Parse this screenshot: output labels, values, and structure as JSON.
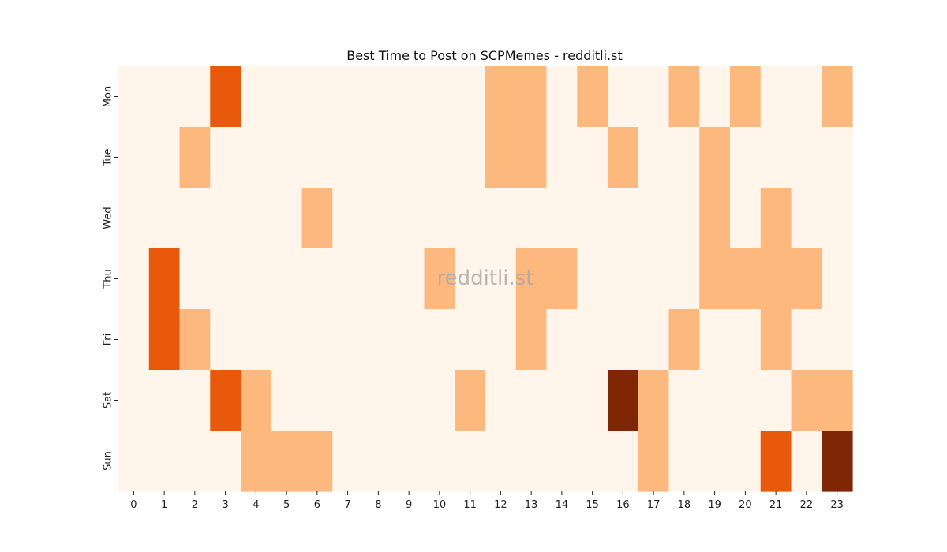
{
  "chart_data": {
    "type": "heatmap",
    "title": "Best Time to Post on SCPMemes - redditli.st",
    "watermark": "redditli.st",
    "xlabel": "",
    "ylabel": "",
    "x_categories": [
      "0",
      "1",
      "2",
      "3",
      "4",
      "5",
      "6",
      "7",
      "8",
      "9",
      "10",
      "11",
      "12",
      "13",
      "14",
      "15",
      "16",
      "17",
      "18",
      "19",
      "20",
      "21",
      "22",
      "23"
    ],
    "y_categories": [
      "Mon",
      "Tue",
      "Wed",
      "Thu",
      "Fri",
      "Sat",
      "Sun"
    ],
    "value_range": [
      0,
      3
    ],
    "colors": [
      "#fff5eb",
      "#fdb97d",
      "#e8590c",
      "#7f2704"
    ],
    "values": [
      [
        0,
        0,
        0,
        2,
        0,
        0,
        0,
        0,
        0,
        0,
        0,
        0,
        1,
        1,
        0,
        1,
        0,
        0,
        1,
        0,
        1,
        0,
        0,
        1
      ],
      [
        0,
        0,
        1,
        0,
        0,
        0,
        0,
        0,
        0,
        0,
        0,
        0,
        1,
        1,
        0,
        0,
        1,
        0,
        0,
        1,
        0,
        0,
        0,
        0
      ],
      [
        0,
        0,
        0,
        0,
        0,
        0,
        1,
        0,
        0,
        0,
        0,
        0,
        0,
        0,
        0,
        0,
        0,
        0,
        0,
        1,
        0,
        1,
        0,
        0
      ],
      [
        0,
        2,
        0,
        0,
        0,
        0,
        0,
        0,
        0,
        0,
        1,
        0,
        0,
        1,
        1,
        0,
        0,
        0,
        0,
        1,
        1,
        1,
        1,
        0
      ],
      [
        0,
        2,
        1,
        0,
        0,
        0,
        0,
        0,
        0,
        0,
        0,
        0,
        0,
        1,
        0,
        0,
        0,
        0,
        1,
        0,
        0,
        1,
        0,
        0
      ],
      [
        0,
        0,
        0,
        2,
        1,
        0,
        0,
        0,
        0,
        0,
        0,
        1,
        0,
        0,
        0,
        0,
        3,
        1,
        0,
        0,
        0,
        0,
        1,
        1
      ],
      [
        0,
        0,
        0,
        0,
        1,
        1,
        1,
        0,
        0,
        0,
        0,
        0,
        0,
        0,
        0,
        0,
        0,
        1,
        0,
        0,
        0,
        2,
        0,
        3
      ]
    ]
  }
}
